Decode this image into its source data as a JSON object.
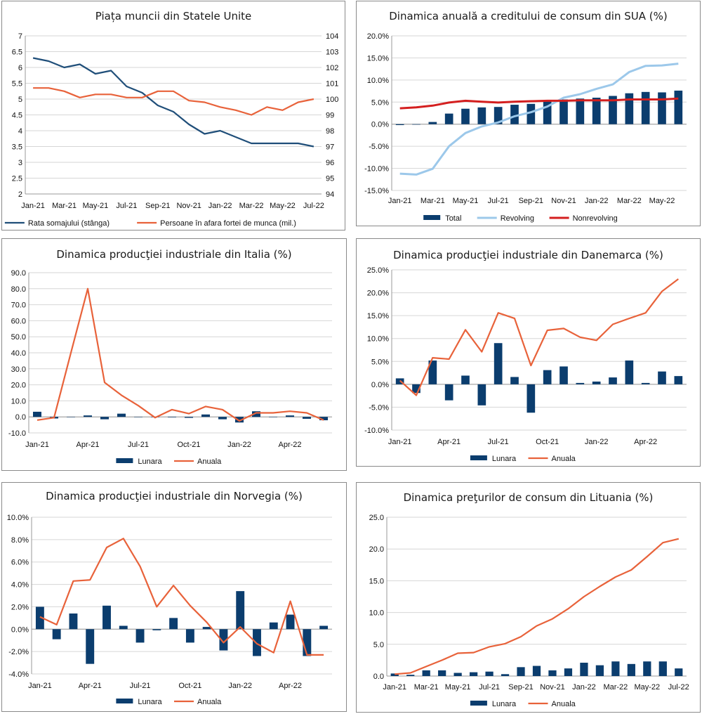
{
  "chart_data": [
    {
      "id": "c1",
      "type": "line",
      "title": "Piața muncii din Statele Unite",
      "x": [
        "Jan-21",
        "Feb-21",
        "Mar-21",
        "Apr-21",
        "May-21",
        "Jun-21",
        "Jul-21",
        "Aug-21",
        "Sep-21",
        "Oct-21",
        "Nov-21",
        "Dec-21",
        "Jan-22",
        "Feb-22",
        "Mar-22",
        "Apr-22",
        "May-22",
        "Jun-22",
        "Jul-22"
      ],
      "xticks": [
        "Jan-21",
        "Mar-21",
        "May-21",
        "Jul-21",
        "Sep-21",
        "Nov-21",
        "Jan-22",
        "Mar-22",
        "May-22",
        "Jul-22"
      ],
      "ylim": [
        2,
        7
      ],
      "yticks": [
        "2",
        "2.5",
        "3",
        "3.5",
        "4",
        "4.5",
        "5",
        "5.5",
        "6",
        "6.5",
        "7"
      ],
      "y2lim": [
        94,
        104
      ],
      "y2ticks": [
        "94",
        "95",
        "96",
        "97",
        "98",
        "99",
        "100",
        "101",
        "102",
        "103",
        "104"
      ],
      "series": [
        {
          "name": "Rata somajului (stânga)",
          "axis": "left",
          "color": "#1f4e79",
          "values": [
            6.3,
            6.2,
            6.0,
            6.1,
            5.8,
            5.9,
            5.4,
            5.2,
            4.8,
            4.6,
            4.2,
            3.9,
            4.0,
            3.8,
            3.6,
            3.6,
            3.6,
            3.6,
            3.5
          ]
        },
        {
          "name": "Persoane în afara fortei de munca (mil.)",
          "axis": "right",
          "color": "#e8623a",
          "values": [
            100.7,
            100.7,
            100.5,
            100.1,
            100.3,
            100.3,
            100.1,
            100.1,
            100.5,
            100.5,
            99.9,
            99.8,
            99.5,
            99.3,
            99.0,
            99.5,
            99.3,
            99.8,
            100.0
          ]
        }
      ]
    },
    {
      "id": "c2",
      "type": "bar",
      "title": "Dinamica anuală a creditului de consum din SUA (%)",
      "x": [
        "Jan-21",
        "Feb-21",
        "Mar-21",
        "Apr-21",
        "May-21",
        "Jun-21",
        "Jul-21",
        "Aug-21",
        "Sep-21",
        "Oct-21",
        "Nov-21",
        "Dec-21",
        "Jan-22",
        "Feb-22",
        "Mar-22",
        "Apr-22",
        "May-22",
        "Jun-22"
      ],
      "xticks": [
        "Jan-21",
        "Mar-21",
        "May-21",
        "Jul-21",
        "Sep-21",
        "Nov-21",
        "Jan-22",
        "Mar-22",
        "May-22"
      ],
      "ylim": [
        -15,
        20
      ],
      "yticks": [
        "-15.0%",
        "-10.0%",
        "-5.0%",
        "0.0%",
        "5.0%",
        "10.0%",
        "15.0%",
        "20.0%"
      ],
      "series": [
        {
          "name": "Total",
          "kind": "bar",
          "color": "#0b3d6e",
          "values": [
            -0.2,
            -0.1,
            0.5,
            2.4,
            3.5,
            3.8,
            3.9,
            4.4,
            4.6,
            5.2,
            5.6,
            5.8,
            6.0,
            6.4,
            7.0,
            7.3,
            7.2,
            7.6
          ]
        },
        {
          "name": "Revolving",
          "kind": "line",
          "color": "#9cc8ea",
          "values": [
            -11.2,
            -11.4,
            -10.1,
            -5.0,
            -2.0,
            -0.5,
            0.4,
            1.8,
            2.7,
            4.0,
            6.0,
            6.8,
            8.0,
            9.0,
            11.8,
            13.2,
            13.3,
            13.7
          ]
        },
        {
          "name": "Nonrevolving",
          "kind": "line",
          "color": "#d41f1f",
          "values": [
            3.6,
            3.8,
            4.2,
            4.9,
            5.3,
            5.1,
            4.9,
            5.1,
            5.2,
            5.3,
            5.3,
            5.4,
            5.4,
            5.4,
            5.6,
            5.6,
            5.6,
            5.8
          ]
        }
      ]
    },
    {
      "id": "c3",
      "type": "bar",
      "title": "Dinamica producţiei industriale din Italia (%)",
      "x": [
        "Jan-21",
        "Feb-21",
        "Mar-21",
        "Apr-21",
        "May-21",
        "Jun-21",
        "Jul-21",
        "Aug-21",
        "Sep-21",
        "Oct-21",
        "Nov-21",
        "Dec-21",
        "Jan-22",
        "Feb-22",
        "Mar-22",
        "Apr-22",
        "May-22",
        "Jun-22"
      ],
      "xticks": [
        "Jan-21",
        "Apr-21",
        "Jul-21",
        "Oct-21",
        "Jan-22",
        "Apr-22"
      ],
      "ylim": [
        -10,
        90
      ],
      "yticks": [
        "-10.0",
        "0.0",
        "10.0",
        "20.0",
        "30.0",
        "40.0",
        "50.0",
        "60.0",
        "70.0",
        "80.0",
        "90.0"
      ],
      "series": [
        {
          "name": "Lunara",
          "kind": "bar",
          "color": "#0b3d6e",
          "values": [
            3.2,
            -1.0,
            0.0,
            0.9,
            -1.5,
            2.0,
            -0.2,
            0.0,
            -0.3,
            -0.6,
            1.5,
            -1.5,
            -3.5,
            3.5,
            0.0,
            0.9,
            -1.2,
            -2.1
          ]
        },
        {
          "name": "Anuala",
          "kind": "line",
          "color": "#e8623a",
          "values": [
            -2.0,
            -0.5,
            40.0,
            80.0,
            21.5,
            13.5,
            7.0,
            -0.5,
            4.5,
            2.0,
            6.5,
            4.5,
            -2.5,
            2.5,
            2.5,
            3.5,
            2.5,
            -2.0
          ]
        }
      ]
    },
    {
      "id": "c4",
      "type": "bar",
      "title": "Dinamica producţiei industriale din Danemarca (%)",
      "x": [
        "Jan-21",
        "Feb-21",
        "Mar-21",
        "Apr-21",
        "May-21",
        "Jun-21",
        "Jul-21",
        "Aug-21",
        "Sep-21",
        "Oct-21",
        "Nov-21",
        "Dec-21",
        "Jan-22",
        "Feb-22",
        "Mar-22",
        "Apr-22",
        "May-22",
        "Jun-22"
      ],
      "xticks": [
        "Jan-21",
        "Apr-21",
        "Jul-21",
        "Oct-21",
        "Jan-22",
        "Apr-22"
      ],
      "ylim": [
        -10,
        25
      ],
      "yticks": [
        "-10.0%",
        "-5.0%",
        "0.0%",
        "5.0%",
        "10.0%",
        "15.0%",
        "20.0%",
        "25.0%"
      ],
      "series": [
        {
          "name": "Lunara",
          "kind": "bar",
          "color": "#0b3d6e",
          "values": [
            1.3,
            -1.9,
            5.2,
            -3.5,
            1.9,
            -4.6,
            9.0,
            1.6,
            -6.2,
            3.1,
            3.9,
            0.3,
            0.6,
            1.5,
            5.2,
            0.3,
            2.8,
            1.8
          ]
        },
        {
          "name": "Anuala",
          "kind": "line",
          "color": "#e8623a",
          "values": [
            0.8,
            -2.4,
            5.8,
            5.5,
            11.9,
            7.1,
            15.6,
            14.4,
            4.1,
            11.8,
            12.2,
            10.3,
            9.6,
            13.1,
            14.4,
            15.6,
            20.3,
            23.0
          ]
        }
      ]
    },
    {
      "id": "c5",
      "type": "bar",
      "title": "Dinamica producţiei industriale din Norvegia (%)",
      "x": [
        "Jan-21",
        "Feb-21",
        "Mar-21",
        "Apr-21",
        "May-21",
        "Jun-21",
        "Jul-21",
        "Aug-21",
        "Sep-21",
        "Oct-21",
        "Nov-21",
        "Dec-21",
        "Jan-22",
        "Feb-22",
        "Mar-22",
        "Apr-22",
        "May-22",
        "Jun-22"
      ],
      "xticks": [
        "Jan-21",
        "Apr-21",
        "Jul-21",
        "Oct-21",
        "Jan-22",
        "Apr-22"
      ],
      "ylim": [
        -4,
        10
      ],
      "yticks": [
        "-4.0%",
        "-2.0%",
        "0.0%",
        "2.0%",
        "4.0%",
        "6.0%",
        "8.0%",
        "10.0%"
      ],
      "series": [
        {
          "name": "Lunara",
          "kind": "bar",
          "color": "#0b3d6e",
          "values": [
            2.0,
            -0.9,
            1.4,
            -3.1,
            2.1,
            0.3,
            -1.2,
            -0.1,
            1.0,
            -1.2,
            0.2,
            -1.9,
            3.4,
            -2.4,
            0.6,
            1.3,
            -2.4,
            0.3
          ]
        },
        {
          "name": "Anuala",
          "kind": "line",
          "color": "#e8623a",
          "values": [
            1.1,
            0.4,
            4.3,
            4.4,
            7.3,
            8.1,
            5.6,
            2.0,
            3.9,
            2.1,
            0.6,
            -1.2,
            0.2,
            -1.3,
            -2.1,
            2.5,
            -2.3,
            -2.3
          ]
        }
      ]
    },
    {
      "id": "c6",
      "type": "bar",
      "title": "Dinamica preţurilor de consum din Lituania (%)",
      "x": [
        "Jan-21",
        "Feb-21",
        "Mar-21",
        "Apr-21",
        "May-21",
        "Jun-21",
        "Jul-21",
        "Aug-21",
        "Sep-21",
        "Oct-21",
        "Nov-21",
        "Dec-21",
        "Jan-22",
        "Feb-22",
        "Mar-22",
        "Apr-22",
        "May-22",
        "Jun-22",
        "Jul-22"
      ],
      "xticks": [
        "Jan-21",
        "Mar-21",
        "May-21",
        "Jul-21",
        "Sep-21",
        "Nov-21",
        "Jan-22",
        "Mar-22",
        "May-22",
        "Jul-22"
      ],
      "ylim": [
        0,
        25
      ],
      "yticks": [
        "0.0",
        "5.0",
        "10.0",
        "15.0",
        "20.0",
        "25.0"
      ],
      "series": [
        {
          "name": "Lunara",
          "kind": "bar",
          "color": "#0b3d6e",
          "values": [
            0.4,
            0.2,
            0.9,
            0.9,
            0.5,
            0.6,
            0.7,
            0.3,
            1.4,
            1.6,
            0.9,
            1.2,
            2.1,
            1.7,
            2.3,
            1.9,
            2.3,
            2.3,
            1.2
          ]
        },
        {
          "name": "Anuala",
          "kind": "line",
          "color": "#e8623a",
          "values": [
            0.3,
            0.5,
            1.5,
            2.5,
            3.6,
            3.7,
            4.6,
            5.1,
            6.2,
            7.9,
            9.0,
            10.6,
            12.5,
            14.1,
            15.6,
            16.7,
            18.8,
            21.0,
            21.6
          ]
        }
      ]
    }
  ]
}
